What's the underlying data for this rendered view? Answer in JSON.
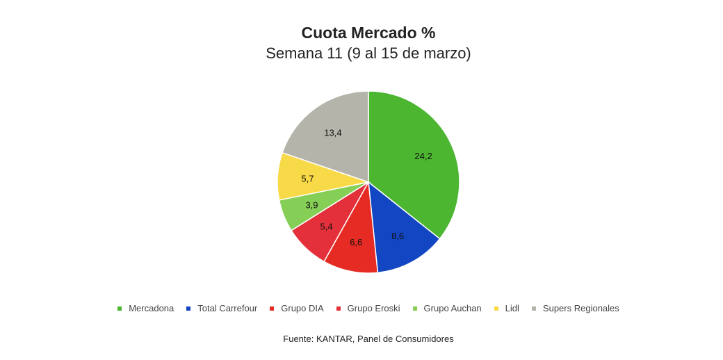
{
  "chart_data": {
    "type": "pie",
    "title": "Cuota Mercado %",
    "subtitle": "Semana 11 (9 al 15 de marzo)",
    "source": "Fuente: KANTAR, Panel de Consumidores",
    "legend_position": "bottom",
    "categories": [
      "Mercadona",
      "Total Carrefour",
      "Grupo DIA",
      "Grupo Eroski",
      "Grupo Auchan",
      "Lidl",
      "Supers Regionales"
    ],
    "values": [
      24.2,
      8.6,
      6.6,
      5.4,
      3.9,
      5.7,
      13.4
    ],
    "value_labels": [
      "24,2",
      "8,6",
      "6,6",
      "5,4",
      "3,9",
      "5,7",
      "13,4"
    ],
    "colors": [
      "#4cb631",
      "#1346c2",
      "#e52b23",
      "#e3303a",
      "#86cf56",
      "#f8da48",
      "#b4b4aa"
    ]
  }
}
